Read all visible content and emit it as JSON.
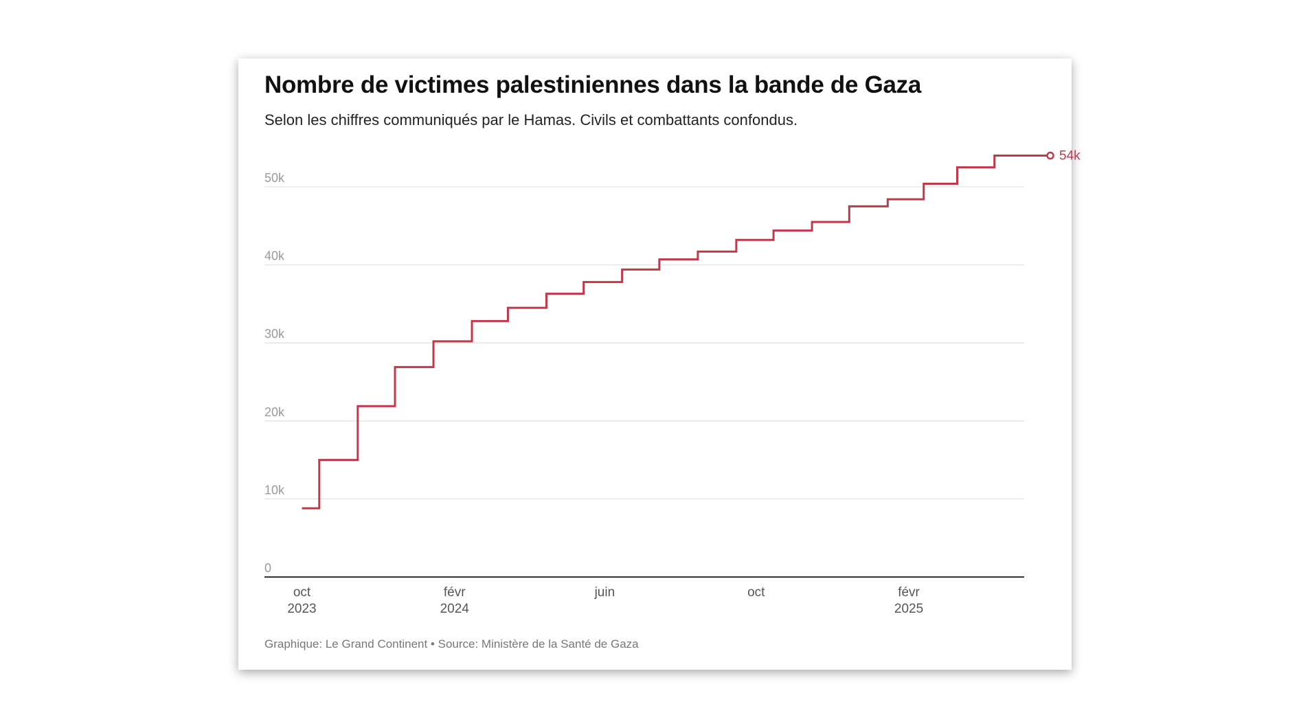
{
  "chart_data": {
    "type": "line",
    "step": true,
    "title": "Nombre de victimes palestiniennes dans la bande de Gaza",
    "subtitle": "Selon les chiffres communiqués par le Hamas. Civils et combattants confondus.",
    "footer": "Graphique: Le Grand Continent • Source: Ministère de la Santé de Gaza",
    "xlabel": "",
    "ylabel": "",
    "ylim": [
      0,
      50000
    ],
    "y_ticks": [
      {
        "value": 0,
        "label": "0"
      },
      {
        "value": 10000,
        "label": "10k"
      },
      {
        "value": 20000,
        "label": "20k"
      },
      {
        "value": 30000,
        "label": "30k"
      },
      {
        "value": 40000,
        "label": "40k"
      },
      {
        "value": 50000,
        "label": "50k"
      }
    ],
    "x_ticks": [
      {
        "date": "2023-10-01",
        "label": "oct",
        "year": "2023"
      },
      {
        "date": "2024-02-01",
        "label": "févr",
        "year": "2024"
      },
      {
        "date": "2024-06-01",
        "label": "juin",
        "year": ""
      },
      {
        "date": "2024-10-01",
        "label": "oct",
        "year": ""
      },
      {
        "date": "2025-02-01",
        "label": "févr",
        "year": "2025"
      }
    ],
    "grid": true,
    "color": "#c0394b",
    "end_label": "54k",
    "points": [
      {
        "date": "2023-10-01",
        "value": 8800
      },
      {
        "date": "2023-10-15",
        "value": 15000
      },
      {
        "date": "2023-11-15",
        "value": 21900
      },
      {
        "date": "2023-12-15",
        "value": 26900
      },
      {
        "date": "2024-01-15",
        "value": 30200
      },
      {
        "date": "2024-02-15",
        "value": 32800
      },
      {
        "date": "2024-03-15",
        "value": 34500
      },
      {
        "date": "2024-04-15",
        "value": 36300
      },
      {
        "date": "2024-05-15",
        "value": 37800
      },
      {
        "date": "2024-06-15",
        "value": 39400
      },
      {
        "date": "2024-07-15",
        "value": 40700
      },
      {
        "date": "2024-08-15",
        "value": 41700
      },
      {
        "date": "2024-09-15",
        "value": 43200
      },
      {
        "date": "2024-10-15",
        "value": 44400
      },
      {
        "date": "2024-11-15",
        "value": 45500
      },
      {
        "date": "2024-12-15",
        "value": 47500
      },
      {
        "date": "2025-01-15",
        "value": 48400
      },
      {
        "date": "2025-02-13",
        "value": 50400
      },
      {
        "date": "2025-03-12",
        "value": 52500
      },
      {
        "date": "2025-04-11",
        "value": 54000
      },
      {
        "date": "2025-05-26",
        "value": 54000
      }
    ]
  }
}
